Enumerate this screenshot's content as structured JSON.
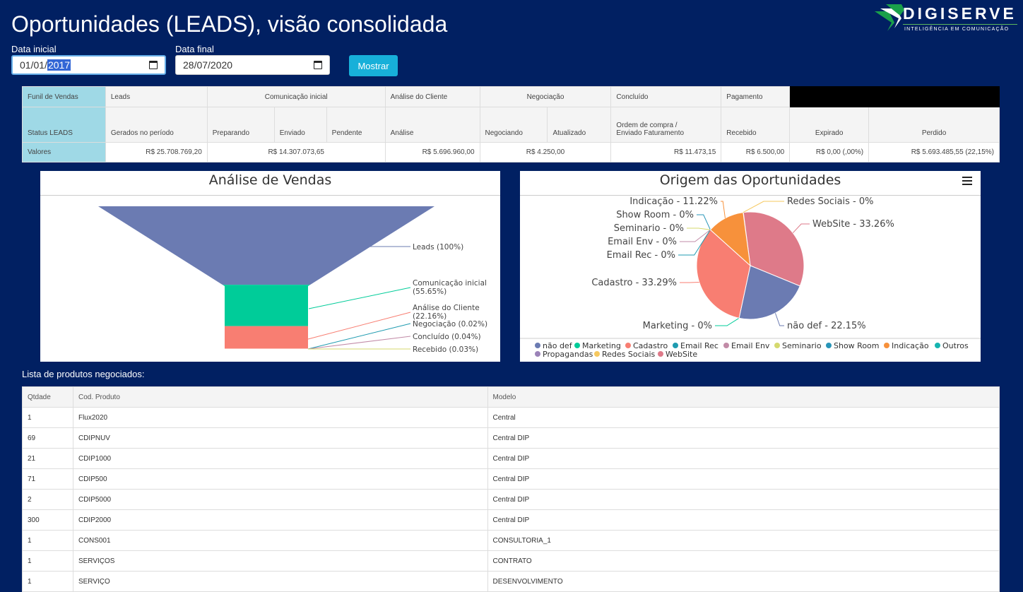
{
  "header": {
    "title": "Oportunidades (LEADS), visão consolidada",
    "logo_name": "DIGISERVE",
    "logo_tagline": "INTELIGÊNCIA EM COMUNICAÇÃO"
  },
  "filters": {
    "start_label": "Data inicial",
    "start_prefix": "01/01/",
    "start_selected": "2017",
    "end_label": "Data final",
    "end_value": "28/07/2020",
    "show_button": "Mostrar"
  },
  "funnel_table": {
    "row1": {
      "funil": "Funil de Vendas",
      "leads": "Leads",
      "comunicacao": "Comunicação inicial",
      "analise": "Análise do Cliente",
      "negociacao": "Negociação",
      "concluido": "Concluído",
      "pagamento": "Pagamento"
    },
    "row2": {
      "status": "Status LEADS",
      "gerados": "Gerados no período",
      "preparando": "Preparando",
      "enviado": "Enviado",
      "pendente": "Pendente",
      "analise": "Análise",
      "negociando": "Negociando",
      "atualizado": "Atualizado",
      "ordem_line1": "Ordem de compra /",
      "ordem_line2": "Enviado Faturamento",
      "recebido": "Recebido",
      "expirado": "Expirado",
      "perdido": "Perdido"
    },
    "row3": {
      "label": "Valores",
      "leads": "R$ 25.708.769,20",
      "comunicacao": "R$ 14.307.073,65",
      "analise": "R$ 5.696.960,00",
      "negociacao": "R$ 4.250,00",
      "concluido": "R$ 11.473,15",
      "pagamento": "R$ 6.500,00",
      "expirado": "R$ 0,00 (,00%)",
      "perdido": "R$ 5.693.485,55 (22,15%)"
    }
  },
  "sales_chart": {
    "title": "Análise de Vendas",
    "colors": [
      "#6b7bb2",
      "#00cc99",
      "#f87e72",
      "#1f9bb0",
      "#c28ba7",
      "#d5d96e"
    ],
    "stages": [
      {
        "label": "Leads (100%)",
        "value": 100
      },
      {
        "label": "Comunicação inicial",
        "label2": "(55.65%)",
        "value": 55.65
      },
      {
        "label": "Análise do Cliente",
        "label2": "(22.16%)",
        "value": 22.16
      },
      {
        "label": "Negociação (0.02%)",
        "value": 0.02
      },
      {
        "label": "Concluído (0.04%)",
        "value": 0.04
      },
      {
        "label": "Recebido (0.03%)",
        "value": 0.03
      }
    ]
  },
  "origin_chart": {
    "title": "Origem das Oportunidades",
    "slices": [
      {
        "label": "não def - 22.15%",
        "value": 22.15,
        "color": "#6b7bb2"
      },
      {
        "label": "Marketing - 0%",
        "value": 0,
        "color": "#00cc99"
      },
      {
        "label": "Cadastro - 33.29%",
        "value": 33.29,
        "color": "#f87e72"
      },
      {
        "label": "Email Rec - 0%",
        "value": 0,
        "color": "#1f9bb0"
      },
      {
        "label": "Email Env - 0%",
        "value": 0,
        "color": "#c28ba7"
      },
      {
        "label": "Seminario - 0%",
        "value": 0,
        "color": "#d5d96e"
      },
      {
        "label": "Show Room - 0%",
        "value": 0,
        "color": "#2895b8"
      },
      {
        "label": "Indicação - 11.22%",
        "value": 11.22,
        "color": "#f7913b"
      },
      {
        "label": "Redes Sociais - 0%",
        "value": 0,
        "color": "#f6c85f"
      },
      {
        "label": "WebSite - 33.26%",
        "value": 33.26,
        "color": "#de7a89"
      }
    ],
    "legend": [
      {
        "name": "não def",
        "color": "#6b7bb2"
      },
      {
        "name": "Marketing",
        "color": "#00cc99"
      },
      {
        "name": "Cadastro",
        "color": "#f87e72"
      },
      {
        "name": "Email Rec",
        "color": "#1f9bb0"
      },
      {
        "name": "Email Env",
        "color": "#c28ba7"
      },
      {
        "name": "Seminario",
        "color": "#d5d96e"
      },
      {
        "name": "Show Room",
        "color": "#2895b8"
      },
      {
        "name": "Indicação",
        "color": "#f7913b"
      },
      {
        "name": "Outros",
        "color": "#16b4b0"
      },
      {
        "name": "Propagandas",
        "color": "#9b83b8"
      },
      {
        "name": "Redes Sociais",
        "color": "#f6c85f"
      },
      {
        "name": "WebSite",
        "color": "#de7a89"
      }
    ]
  },
  "products": {
    "label": "Lista de produtos negociados:",
    "headers": {
      "qty": "Qtdade",
      "code": "Cod. Produto",
      "model": "Modelo"
    },
    "rows": [
      {
        "qty": "1",
        "code": "Flux2020",
        "model": "Central"
      },
      {
        "qty": "69",
        "code": "CDIPNUV",
        "model": "Central DIP"
      },
      {
        "qty": "21",
        "code": "CDIP1000",
        "model": "Central DIP"
      },
      {
        "qty": "71",
        "code": "CDIP500",
        "model": "Central DIP"
      },
      {
        "qty": "2",
        "code": "CDIP5000",
        "model": "Central DIP"
      },
      {
        "qty": "300",
        "code": "CDIP2000",
        "model": "Central DIP"
      },
      {
        "qty": "1",
        "code": "CONS001",
        "model": "CONSULTORIA_1"
      },
      {
        "qty": "1",
        "code": "SERVIÇOS",
        "model": "CONTRATO"
      },
      {
        "qty": "1",
        "code": "SERVIÇO",
        "model": "DESENVOLVIMENTO"
      }
    ]
  }
}
